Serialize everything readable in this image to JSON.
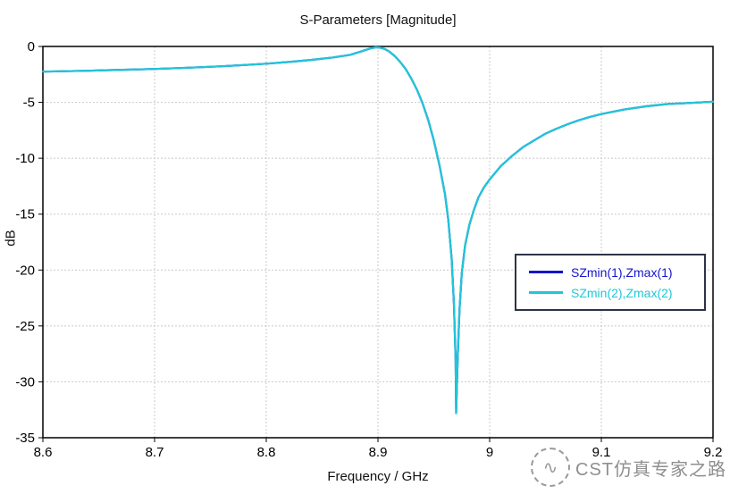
{
  "title": "S-Parameters [Magnitude]",
  "xlabel": "Frequency / GHz",
  "ylabel": "dB",
  "watermark": {
    "logo_glyph": "∿",
    "text": "CST仿真专家之路"
  },
  "chart_data": {
    "type": "line",
    "title": "S-Parameters [Magnitude]",
    "xlabel": "Frequency / GHz",
    "ylabel": "dB",
    "xlim": [
      8.6,
      9.2
    ],
    "ylim": [
      -35,
      0
    ],
    "xticks": [
      8.6,
      8.7,
      8.8,
      8.9,
      9,
      9.1,
      9.2
    ],
    "xtick_labels": [
      "8.6",
      "8.7",
      "8.8",
      "8.9",
      "9",
      "9.1",
      "9.2"
    ],
    "yticks": [
      0,
      -5,
      -10,
      -15,
      -20,
      -25,
      -30,
      -35
    ],
    "ytick_labels": [
      "0",
      "-5",
      "-10",
      "-15",
      "-20",
      "-25",
      "-30",
      "-35"
    ],
    "grid": true,
    "legend_position": "right-middle",
    "resonance_note": "deep dip near 8.97 GHz reaching about -33 dB",
    "series": [
      {
        "name": "SZmin(1),Zmax(1)",
        "color": "#1414CC",
        "x": [
          8.6,
          8.62,
          8.64,
          8.66,
          8.68,
          8.7,
          8.72,
          8.74,
          8.76,
          8.78,
          8.8,
          8.82,
          8.84,
          8.86,
          8.875,
          8.885,
          8.893,
          8.898,
          8.902,
          8.906,
          8.91,
          8.915,
          8.92,
          8.925,
          8.93,
          8.935,
          8.94,
          8.945,
          8.95,
          8.955,
          8.96,
          8.963,
          8.966,
          8.968,
          8.9695,
          8.97,
          8.9715,
          8.973,
          8.975,
          8.978,
          8.982,
          8.986,
          8.99,
          8.995,
          9.0,
          9.01,
          9.02,
          9.03,
          9.04,
          9.05,
          9.06,
          9.07,
          9.08,
          9.09,
          9.1,
          9.12,
          9.14,
          9.16,
          9.18,
          9.2
        ],
        "y": [
          -2.25,
          -2.21,
          -2.17,
          -2.12,
          -2.07,
          -2.01,
          -1.94,
          -1.86,
          -1.77,
          -1.66,
          -1.54,
          -1.39,
          -1.21,
          -0.98,
          -0.75,
          -0.45,
          -0.18,
          -0.07,
          -0.1,
          -0.22,
          -0.45,
          -0.85,
          -1.4,
          -2.05,
          -2.9,
          -3.9,
          -5.1,
          -6.6,
          -8.4,
          -10.6,
          -13.2,
          -15.5,
          -19.0,
          -23.0,
          -28.0,
          -32.8,
          -27.5,
          -23.5,
          -20.3,
          -17.8,
          -15.9,
          -14.6,
          -13.5,
          -12.6,
          -11.9,
          -10.7,
          -9.8,
          -9.0,
          -8.4,
          -7.8,
          -7.35,
          -6.95,
          -6.6,
          -6.3,
          -6.05,
          -5.65,
          -5.35,
          -5.15,
          -5.05,
          -4.95
        ]
      },
      {
        "name": "SZmin(2),Zmax(2)",
        "color": "#1FC7D7",
        "x": [
          8.6,
          8.62,
          8.64,
          8.66,
          8.68,
          8.7,
          8.72,
          8.74,
          8.76,
          8.78,
          8.8,
          8.82,
          8.84,
          8.86,
          8.875,
          8.885,
          8.893,
          8.898,
          8.902,
          8.906,
          8.91,
          8.915,
          8.92,
          8.925,
          8.93,
          8.935,
          8.94,
          8.945,
          8.95,
          8.955,
          8.96,
          8.963,
          8.966,
          8.968,
          8.9695,
          8.97,
          8.9715,
          8.973,
          8.975,
          8.978,
          8.982,
          8.986,
          8.99,
          8.995,
          9.0,
          9.01,
          9.02,
          9.03,
          9.04,
          9.05,
          9.06,
          9.07,
          9.08,
          9.09,
          9.1,
          9.12,
          9.14,
          9.16,
          9.18,
          9.2
        ],
        "y": [
          -2.25,
          -2.21,
          -2.17,
          -2.12,
          -2.07,
          -2.01,
          -1.94,
          -1.86,
          -1.77,
          -1.66,
          -1.54,
          -1.39,
          -1.21,
          -0.98,
          -0.75,
          -0.45,
          -0.18,
          -0.07,
          -0.1,
          -0.22,
          -0.45,
          -0.85,
          -1.4,
          -2.05,
          -2.9,
          -3.9,
          -5.1,
          -6.6,
          -8.4,
          -10.6,
          -13.2,
          -15.5,
          -19.0,
          -23.0,
          -28.0,
          -32.8,
          -27.5,
          -23.5,
          -20.3,
          -17.8,
          -15.9,
          -14.6,
          -13.5,
          -12.6,
          -11.9,
          -10.7,
          -9.8,
          -9.0,
          -8.4,
          -7.8,
          -7.35,
          -6.95,
          -6.6,
          -6.3,
          -6.05,
          -5.65,
          -5.35,
          -5.15,
          -5.05,
          -4.95
        ]
      }
    ]
  }
}
